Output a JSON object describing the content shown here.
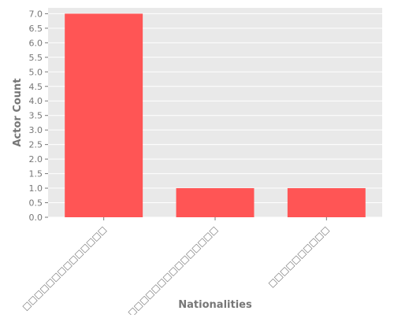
{
  "chart_data": {
    "type": "bar",
    "title": "",
    "xlabel": "Nationalities",
    "ylabel": "Actor Count",
    "categories": [
      "□□□□□□□□□□□□□□",
      "□□□□□□□□□□□□□□□",
      "□□□□□□□□□□"
    ],
    "values": [
      7,
      1,
      1
    ],
    "ylim": [
      0,
      7.2
    ],
    "yticks": [
      "0.0",
      "0.5",
      "1.0",
      "1.5",
      "2.0",
      "2.5",
      "3.0",
      "3.5",
      "4.0",
      "4.5",
      "5.0",
      "5.5",
      "6.0",
      "6.5",
      "7.0"
    ],
    "grid": true,
    "bar_color": "#ff5555",
    "background_color": "#e9e9e9",
    "grid_color": "#ffffff"
  }
}
